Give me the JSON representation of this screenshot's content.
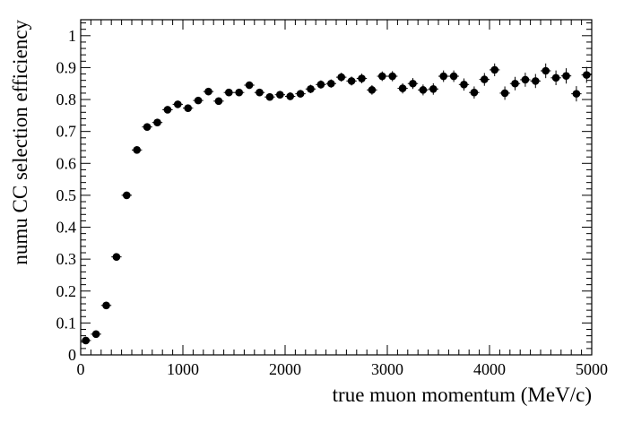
{
  "chart_data": {
    "type": "scatter",
    "title": "",
    "xlabel": "true muon momentum (MeV/c)",
    "ylabel": "numu CC selection efficiency",
    "xlim": [
      0,
      5000
    ],
    "ylim": [
      0,
      1.05
    ],
    "x_ticks": [
      0,
      1000,
      2000,
      3000,
      4000,
      5000
    ],
    "x_tick_labels": [
      "0",
      "1000",
      "2000",
      "3000",
      "4000",
      "5000"
    ],
    "y_ticks": [
      0,
      0.1,
      0.2,
      0.3,
      0.4,
      0.5,
      0.6,
      0.7,
      0.8,
      0.9,
      1
    ],
    "y_tick_labels": [
      "0",
      "0.1",
      "0.2",
      "0.3",
      "0.4",
      "0.5",
      "0.6",
      "0.7",
      "0.8",
      "0.9",
      "1"
    ],
    "x_bin_halfwidth": 50,
    "grid": false,
    "legend": "none",
    "marker_color": "#000000",
    "series": [
      {
        "x": [
          50,
          150,
          250,
          350,
          450,
          550,
          650,
          750,
          850,
          950,
          1050,
          1150,
          1250,
          1350,
          1450,
          1550,
          1650,
          1750,
          1850,
          1950,
          2050,
          2150,
          2250,
          2350,
          2450,
          2550,
          2650,
          2750,
          2850,
          2950,
          3050,
          3150,
          3250,
          3350,
          3450,
          3550,
          3650,
          3750,
          3850,
          3950,
          4050,
          4150,
          4250,
          4350,
          4450,
          4550,
          4650,
          4750,
          4850,
          4950
        ],
        "y": [
          0.045,
          0.065,
          0.155,
          0.307,
          0.5,
          0.642,
          0.714,
          0.728,
          0.768,
          0.785,
          0.773,
          0.797,
          0.825,
          0.795,
          0.822,
          0.822,
          0.845,
          0.822,
          0.808,
          0.815,
          0.81,
          0.818,
          0.833,
          0.847,
          0.85,
          0.87,
          0.858,
          0.866,
          0.83,
          0.873,
          0.873,
          0.835,
          0.85,
          0.83,
          0.833,
          0.873,
          0.873,
          0.847,
          0.822,
          0.863,
          0.893,
          0.82,
          0.85,
          0.862,
          0.858,
          0.89,
          0.868,
          0.874,
          0.818,
          0.877
        ],
        "yerr": [
          0.005,
          0.006,
          0.007,
          0.008,
          0.008,
          0.008,
          0.008,
          0.008,
          0.008,
          0.008,
          0.009,
          0.009,
          0.009,
          0.01,
          0.01,
          0.01,
          0.01,
          0.011,
          0.011,
          0.012,
          0.012,
          0.012,
          0.013,
          0.013,
          0.013,
          0.014,
          0.014,
          0.015,
          0.015,
          0.015,
          0.016,
          0.016,
          0.017,
          0.017,
          0.018,
          0.018,
          0.018,
          0.019,
          0.019,
          0.02,
          0.02,
          0.021,
          0.021,
          0.022,
          0.022,
          0.023,
          0.023,
          0.024,
          0.024,
          0.025
        ]
      }
    ]
  }
}
